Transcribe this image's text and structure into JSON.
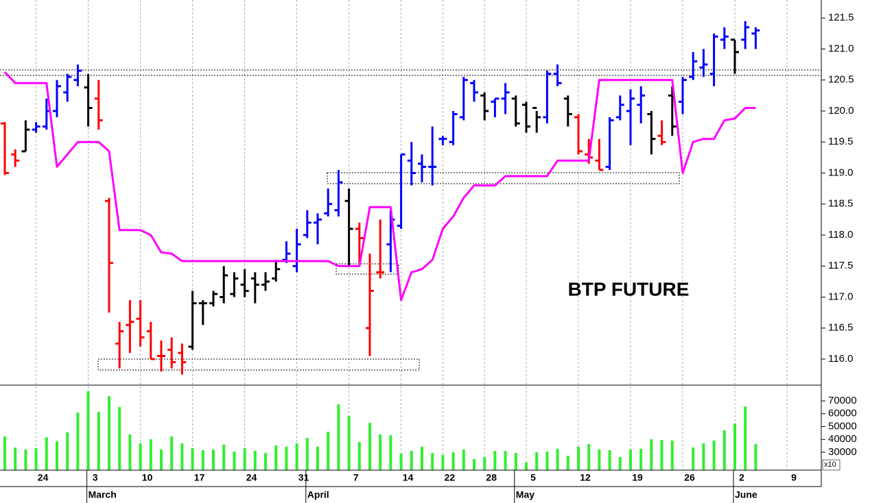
{
  "chart_data": [
    {
      "type": "ohlc",
      "annotation": "BTP FUTURE",
      "categories": [
        null,
        null,
        null,
        "24",
        null,
        null,
        null,
        null,
        "3",
        null,
        null,
        null,
        null,
        "10",
        null,
        null,
        null,
        null,
        "17",
        null,
        null,
        null,
        null,
        "24",
        null,
        null,
        null,
        null,
        "31",
        null,
        null,
        null,
        null,
        "7",
        null,
        null,
        null,
        null,
        "14",
        null,
        null,
        null,
        "22",
        null,
        null,
        null,
        "28",
        null,
        null,
        null,
        "5",
        null,
        null,
        null,
        null,
        "12",
        null,
        null,
        null,
        null,
        "19",
        null,
        null,
        null,
        null,
        "26",
        null,
        null,
        null,
        null,
        "2",
        null,
        null,
        null,
        null,
        "9"
      ],
      "months": [
        null,
        null,
        null,
        null,
        null,
        null,
        null,
        null,
        "March",
        null,
        null,
        null,
        null,
        null,
        null,
        null,
        null,
        null,
        null,
        null,
        null,
        null,
        null,
        null,
        null,
        null,
        null,
        null,
        null,
        "April",
        null,
        null,
        null,
        null,
        null,
        null,
        null,
        null,
        null,
        null,
        null,
        null,
        null,
        null,
        null,
        null,
        null,
        null,
        null,
        "May",
        null,
        null,
        null,
        null,
        null,
        null,
        null,
        null,
        null,
        null,
        null,
        null,
        null,
        null,
        null,
        null,
        null,
        null,
        null,
        null,
        "June",
        null,
        null,
        null,
        null,
        null
      ],
      "open": [
        119.8,
        119.3,
        119.35,
        119.7,
        119.75,
        120.0,
        120.3,
        120.5,
        120.38,
        120.2,
        118.55,
        116.25,
        116.55,
        116.65,
        116.45,
        116.05,
        116.15,
        116.1,
        116.2,
        116.9,
        116.9,
        117.0,
        117.05,
        117.2,
        117.3,
        117.2,
        117.3,
        117.6,
        117.5,
        118.0,
        118.2,
        118.35,
        118.4,
        118.55,
        118.1,
        116.5,
        117.4,
        117.85,
        118.15,
        119.2,
        119.15,
        119.1,
        119.55,
        119.5,
        119.9,
        120.45,
        120.25,
        120.15,
        120.2,
        120.2,
        120.1,
        120.05,
        119.9,
        120.6,
        120.2,
        119.9,
        119.3,
        119.2,
        119.1,
        119.9,
        120.0,
        120.1,
        119.95,
        119.6,
        120.25,
        120.15,
        120.55,
        120.7,
        120.6,
        121.15,
        121.15,
        121.15,
        121.25,
        null,
        null,
        null
      ],
      "high": [
        119.82,
        119.38,
        119.85,
        119.82,
        120.2,
        120.5,
        120.6,
        120.75,
        120.6,
        120.5,
        118.6,
        116.6,
        116.95,
        116.95,
        116.6,
        116.3,
        116.35,
        116.25,
        117.1,
        116.95,
        117.1,
        117.5,
        117.4,
        117.45,
        117.4,
        117.4,
        117.6,
        117.9,
        118.1,
        118.4,
        118.35,
        118.75,
        119.05,
        118.75,
        118.2,
        117.7,
        118.25,
        118.4,
        119.3,
        119.5,
        119.3,
        119.75,
        119.6,
        120.0,
        120.55,
        120.5,
        120.3,
        120.2,
        120.45,
        120.25,
        120.15,
        120.0,
        120.65,
        120.75,
        120.25,
        119.95,
        119.55,
        119.55,
        119.9,
        120.25,
        120.35,
        120.4,
        120.0,
        119.85,
        120.4,
        120.55,
        120.95,
        121.0,
        121.25,
        121.35,
        121.15,
        121.45,
        121.35,
        null,
        null,
        null
      ],
      "low": [
        118.97,
        119.1,
        119.35,
        119.65,
        119.7,
        119.9,
        120.15,
        120.4,
        119.75,
        119.7,
        116.75,
        115.85,
        116.1,
        116.2,
        116.0,
        115.8,
        115.85,
        115.75,
        116.15,
        116.55,
        116.85,
        116.9,
        117.0,
        117.0,
        116.9,
        117.1,
        117.25,
        117.55,
        117.4,
        117.95,
        117.85,
        118.3,
        118.3,
        117.5,
        117.55,
        116.05,
        117.3,
        117.4,
        118.1,
        118.8,
        118.85,
        118.8,
        119.45,
        119.45,
        119.85,
        120.15,
        119.85,
        119.9,
        119.95,
        119.75,
        119.65,
        119.65,
        119.8,
        120.4,
        119.75,
        119.3,
        119.15,
        119.05,
        119.05,
        119.85,
        119.45,
        119.8,
        119.3,
        119.45,
        119.6,
        119.95,
        120.5,
        120.55,
        120.4,
        121.0,
        120.6,
        121.0,
        121.0,
        null,
        null,
        null
      ],
      "close": [
        119.0,
        119.2,
        119.7,
        119.75,
        120.0,
        120.4,
        120.55,
        120.65,
        120.05,
        119.85,
        117.55,
        116.45,
        116.6,
        116.35,
        116.0,
        116.05,
        115.95,
        115.95,
        116.9,
        116.9,
        117.05,
        117.35,
        117.3,
        117.1,
        117.2,
        117.25,
        117.45,
        117.7,
        117.85,
        118.2,
        118.25,
        118.5,
        118.85,
        118.1,
        117.95,
        117.1,
        117.4,
        118.25,
        119.3,
        119.0,
        119.1,
        119.1,
        119.55,
        119.95,
        120.5,
        120.3,
        120.0,
        120.2,
        120.3,
        119.8,
        119.75,
        119.9,
        120.6,
        120.45,
        119.95,
        119.35,
        119.25,
        119.05,
        119.85,
        120.1,
        120.2,
        120.25,
        119.55,
        119.5,
        119.75,
        120.5,
        120.8,
        120.75,
        121.2,
        121.2,
        120.95,
        121.35,
        121.3,
        null,
        null,
        null
      ],
      "colors": [
        "#ff0000",
        "#ff0000",
        "#000000",
        "#0000ff",
        "#0000ff",
        "#0000ff",
        "#0000ff",
        "#0000ff",
        "#000000",
        "#ff0000",
        "#ff0000",
        "#ff0000",
        "#ff0000",
        "#ff0000",
        "#ff0000",
        "#ff0000",
        "#ff0000",
        "#ff0000",
        "#000000",
        "#000000",
        "#000000",
        "#000000",
        "#000000",
        "#000000",
        "#000000",
        "#000000",
        "#000000",
        "#0000ff",
        "#0000ff",
        "#0000ff",
        "#0000ff",
        "#0000ff",
        "#0000ff",
        "#000000",
        "#ff0000",
        "#ff0000",
        "#ff0000",
        "#0000ff",
        "#0000ff",
        "#0000ff",
        "#0000ff",
        "#0000ff",
        "#0000ff",
        "#0000ff",
        "#0000ff",
        "#0000ff",
        "#000000",
        "#0000ff",
        "#0000ff",
        "#000000",
        "#000000",
        "#000000",
        "#0000ff",
        "#0000ff",
        "#000000",
        "#ff0000",
        "#ff0000",
        "#ff0000",
        "#0000ff",
        "#0000ff",
        "#0000ff",
        "#0000ff",
        "#000000",
        "#ff0000",
        "#000000",
        "#0000ff",
        "#0000ff",
        "#0000ff",
        "#0000ff",
        "#0000ff",
        "#000000",
        "#0000ff",
        "#0000ff",
        null,
        null,
        null
      ],
      "line": {
        "color": "#ff00ff",
        "values": [
          120.63,
          120.45,
          120.45,
          120.45,
          120.45,
          119.1,
          119.3,
          119.5,
          119.5,
          119.5,
          119.35,
          118.08,
          118.08,
          118.08,
          118.0,
          117.72,
          117.7,
          117.58,
          117.58,
          117.58,
          117.58,
          117.58,
          117.58,
          117.58,
          117.58,
          117.58,
          117.58,
          117.58,
          117.58,
          117.58,
          117.58,
          117.58,
          117.5,
          117.5,
          117.5,
          118.45,
          118.45,
          118.45,
          116.95,
          117.4,
          117.45,
          117.6,
          118.1,
          118.3,
          118.6,
          118.8,
          118.8,
          118.8,
          118.95,
          118.95,
          118.95,
          118.95,
          118.95,
          119.2,
          119.2,
          119.2,
          119.2,
          120.5,
          120.5,
          120.5,
          120.5,
          120.5,
          120.5,
          120.5,
          120.5,
          119.0,
          119.5,
          119.55,
          119.55,
          119.85,
          119.88,
          120.05,
          120.05,
          null,
          null,
          null
        ]
      },
      "ylim": [
        115.58,
        121.79
      ],
      "yticks": [
        {
          "value": 116,
          "label": "116.0"
        },
        116.5,
        {
          "value": 117,
          "label": "117.0"
        },
        117.5,
        {
          "value": 118,
          "label": "118.0"
        },
        118.5,
        {
          "value": 119,
          "label": "119.0"
        },
        119.5,
        {
          "value": 120,
          "label": "120.0"
        },
        120.5,
        {
          "value": 121,
          "label": "121.0"
        },
        121.5
      ],
      "grid": true
    },
    {
      "type": "bar",
      "color": "#33ee33",
      "values": [
        42300,
        33700,
        32100,
        33200,
        41700,
        38500,
        45500,
        60900,
        77500,
        61500,
        73700,
        65200,
        43900,
        36900,
        40100,
        32100,
        42300,
        36900,
        33200,
        31600,
        32100,
        35900,
        30500,
        33200,
        31100,
        29500,
        35300,
        34300,
        36900,
        41200,
        34300,
        46000,
        67300,
        58300,
        38000,
        52900,
        43900,
        43300,
        28900,
        31100,
        34300,
        29500,
        27900,
        30000,
        32100,
        24700,
        26300,
        31100,
        31100,
        29500,
        22000,
        30000,
        30500,
        32700,
        27300,
        34300,
        36400,
        32100,
        31600,
        26300,
        32100,
        32700,
        40100,
        39600,
        39100,
        null,
        33700,
        36900,
        39100,
        47100,
        52400,
        65700,
        36400,
        null,
        null,
        null
      ],
      "ylim": [
        16100,
        82300
      ],
      "yticks": [
        30000,
        40000,
        50000,
        60000,
        70000
      ],
      "axis_note": "x10",
      "grid": true
    }
  ]
}
